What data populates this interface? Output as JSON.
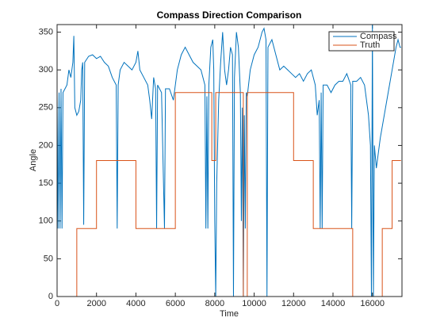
{
  "chart_data": {
    "type": "line",
    "title": "Compass Direction Comparison",
    "x_label": "Time",
    "y_label": "Angle",
    "xlim": [
      0,
      17500
    ],
    "ylim": [
      0,
      360
    ],
    "xticks": [
      0,
      2000,
      4000,
      6000,
      8000,
      10000,
      12000,
      14000,
      16000
    ],
    "yticks": [
      0,
      50,
      100,
      150,
      200,
      250,
      300,
      350
    ],
    "legend_position": "upper right",
    "series": [
      {
        "name": "Compass",
        "color": "#0072bd",
        "x": [
          0,
          50,
          100,
          150,
          200,
          250,
          300,
          400,
          500,
          600,
          700,
          800,
          850,
          900,
          1000,
          1100,
          1200,
          1250,
          1300,
          1350,
          1400,
          1600,
          1800,
          2000,
          2200,
          2400,
          2600,
          2800,
          3000,
          3050,
          3100,
          3200,
          3400,
          3600,
          3800,
          4000,
          4100,
          4200,
          4400,
          4600,
          4700,
          4800,
          4900,
          5000,
          5050,
          5100,
          5300,
          5450,
          5500,
          5700,
          5900,
          6100,
          6300,
          6500,
          6700,
          6900,
          7100,
          7300,
          7500,
          7550,
          7600,
          7650,
          7700,
          7800,
          7900,
          7950,
          8000,
          8050,
          8100,
          8200,
          8300,
          8400,
          8500,
          8600,
          8700,
          8800,
          8900,
          8950,
          9000,
          9100,
          9200,
          9300,
          9350,
          9400,
          9450,
          9500,
          9550,
          9600,
          9650,
          9800,
          10000,
          10200,
          10400,
          10500,
          10600,
          10650,
          10700,
          10900,
          11100,
          11300,
          11500,
          11700,
          11900,
          12100,
          12300,
          12500,
          12700,
          12900,
          13100,
          13200,
          13300,
          13350,
          13400,
          13450,
          13500,
          13700,
          13900,
          14100,
          14300,
          14500,
          14700,
          14900,
          14950,
          15000,
          15200,
          15400,
          15600,
          15800,
          15900,
          15950,
          16000,
          16050,
          16100,
          16200,
          16400,
          16600,
          16800,
          17000,
          17200,
          17300,
          17400,
          17450
        ],
        "values": [
          270,
          90,
          270,
          90,
          275,
          90,
          270,
          275,
          280,
          300,
          290,
          310,
          345,
          250,
          240,
          245,
          260,
          300,
          310,
          95,
          310,
          318,
          320,
          315,
          318,
          310,
          305,
          290,
          280,
          90,
          280,
          300,
          310,
          305,
          300,
          310,
          325,
          300,
          290,
          280,
          260,
          235,
          290,
          275,
          90,
          280,
          270,
          90,
          275,
          275,
          260,
          300,
          320,
          330,
          320,
          310,
          305,
          300,
          280,
          90,
          265,
          90,
          280,
          330,
          340,
          300,
          100,
          0,
          150,
          260,
          310,
          350,
          300,
          280,
          300,
          330,
          320,
          0,
          290,
          350,
          330,
          270,
          100,
          250,
          0,
          240,
          90,
          270,
          265,
          300,
          320,
          330,
          350,
          355,
          340,
          0,
          330,
          340,
          320,
          300,
          305,
          300,
          295,
          290,
          295,
          285,
          295,
          300,
          280,
          240,
          260,
          90,
          270,
          90,
          280,
          280,
          270,
          280,
          285,
          285,
          295,
          280,
          90,
          285,
          285,
          290,
          280,
          240,
          200,
          0,
          360,
          0,
          200,
          170,
          210,
          240,
          270,
          300,
          330,
          340,
          330,
          330
        ]
      },
      {
        "name": "Truth",
        "color": "#d95319",
        "x": [
          0,
          1000,
          1000,
          2000,
          2000,
          4000,
          4000,
          6000,
          6000,
          7850,
          7850,
          8050,
          8050,
          9450,
          9450,
          9650,
          9650,
          12000,
          12000,
          13000,
          13000,
          15000,
          15000,
          16500,
          16500,
          17000,
          17000,
          17450
        ],
        "values": [
          0,
          0,
          90,
          90,
          180,
          180,
          90,
          90,
          270,
          270,
          180,
          180,
          270,
          270,
          0,
          0,
          270,
          270,
          180,
          180,
          90,
          90,
          0,
          0,
          90,
          90,
          180,
          180
        ]
      }
    ]
  }
}
